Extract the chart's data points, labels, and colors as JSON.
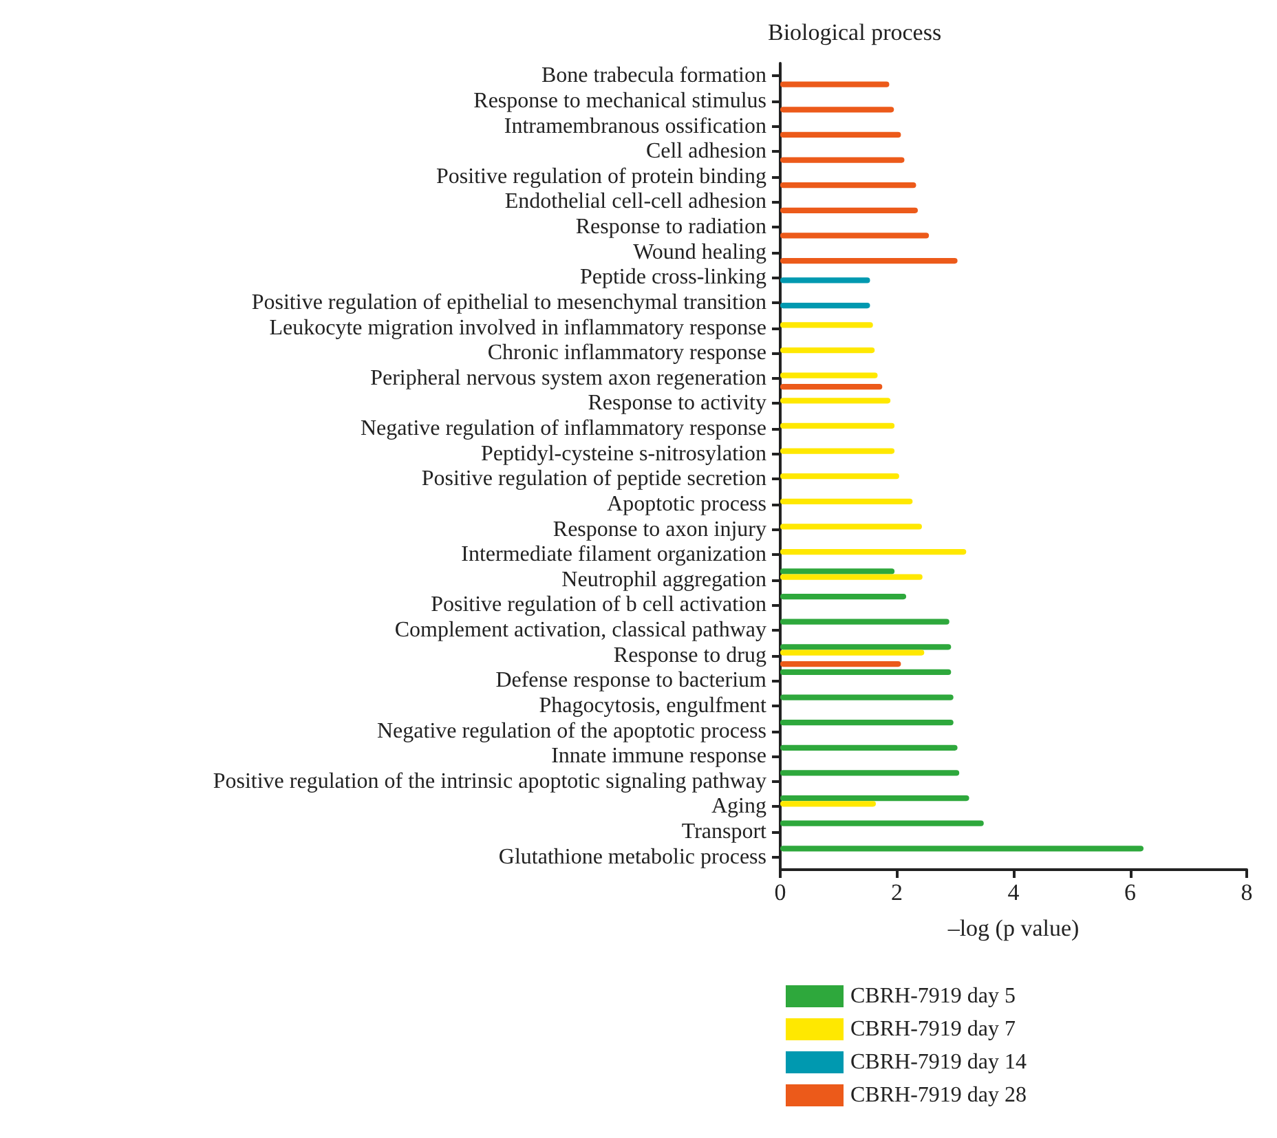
{
  "chart_data": {
    "type": "bar",
    "orientation": "horizontal",
    "title": "Biological process",
    "xlabel": "–log (p value)",
    "categories": [
      "Bone trabecula formation",
      "Response to mechanical stimulus",
      "Intramembranous ossification",
      "Cell adhesion",
      "Positive regulation of protein binding",
      "Endothelial cell-cell adhesion",
      "Response to radiation",
      "Wound healing",
      "Peptide cross-linking",
      "Positive regulation of epithelial to mesenchymal transition",
      "Leukocyte migration involved in inflammatory response",
      "Chronic inflammatory response",
      "Peripheral nervous system axon regeneration",
      "Response to activity",
      "Negative regulation of inflammatory response",
      "Peptidyl-cysteine s-nitrosylation",
      "Positive regulation of peptide secretion",
      "Apoptotic process",
      "Response to axon injury",
      "Intermediate filament organization",
      "Neutrophil aggregation",
      "Positive regulation of b cell activation",
      "Complement activation, classical pathway",
      "Response to drug",
      "Defense response to bacterium",
      "Phagocytosis, engulfment",
      "Negative regulation of the apoptotic process",
      "Innate immune response",
      "Positive regulation of the intrinsic apoptotic signaling pathway",
      "Aging",
      "Transport",
      "Glutathione metabolic process"
    ],
    "series": [
      {
        "name": "CBRH-7919 day 5",
        "color": "#2ea83c",
        "values": [
          null,
          null,
          null,
          null,
          null,
          null,
          null,
          null,
          null,
          null,
          null,
          null,
          null,
          null,
          null,
          null,
          null,
          null,
          null,
          null,
          1.96,
          2.16,
          2.9,
          2.93,
          2.93,
          2.97,
          2.97,
          3.04,
          3.07,
          3.24,
          3.49,
          6.23
        ]
      },
      {
        "name": "CBRH-7919 day 7",
        "color": "#ffe800",
        "values": [
          null,
          null,
          null,
          null,
          null,
          null,
          null,
          null,
          null,
          null,
          1.59,
          1.62,
          1.67,
          1.89,
          1.96,
          1.96,
          2.04,
          2.27,
          2.43,
          3.19,
          2.44,
          null,
          null,
          2.47,
          null,
          null,
          null,
          null,
          null,
          1.64,
          null,
          null
        ]
      },
      {
        "name": "CBRH-7919 day 14",
        "color": "#0099b0",
        "values": [
          null,
          null,
          null,
          null,
          null,
          null,
          null,
          null,
          1.54,
          1.54,
          null,
          null,
          null,
          null,
          null,
          null,
          null,
          null,
          null,
          null,
          null,
          null,
          null,
          null,
          null,
          null,
          null,
          null,
          null,
          null,
          null,
          null
        ]
      },
      {
        "name": "CBRH-7919 day 28",
        "color": "#ec5a1a",
        "values": [
          1.87,
          1.95,
          2.07,
          2.13,
          2.33,
          2.36,
          2.55,
          3.04,
          null,
          null,
          null,
          null,
          1.75,
          null,
          null,
          null,
          null,
          null,
          null,
          null,
          null,
          null,
          null,
          2.07,
          null,
          null,
          null,
          null,
          null,
          null,
          null,
          null
        ]
      }
    ],
    "xlim": [
      0,
      8
    ],
    "xticks": [
      0,
      2,
      4,
      6,
      8
    ],
    "grid": false,
    "legend": "bottom"
  }
}
